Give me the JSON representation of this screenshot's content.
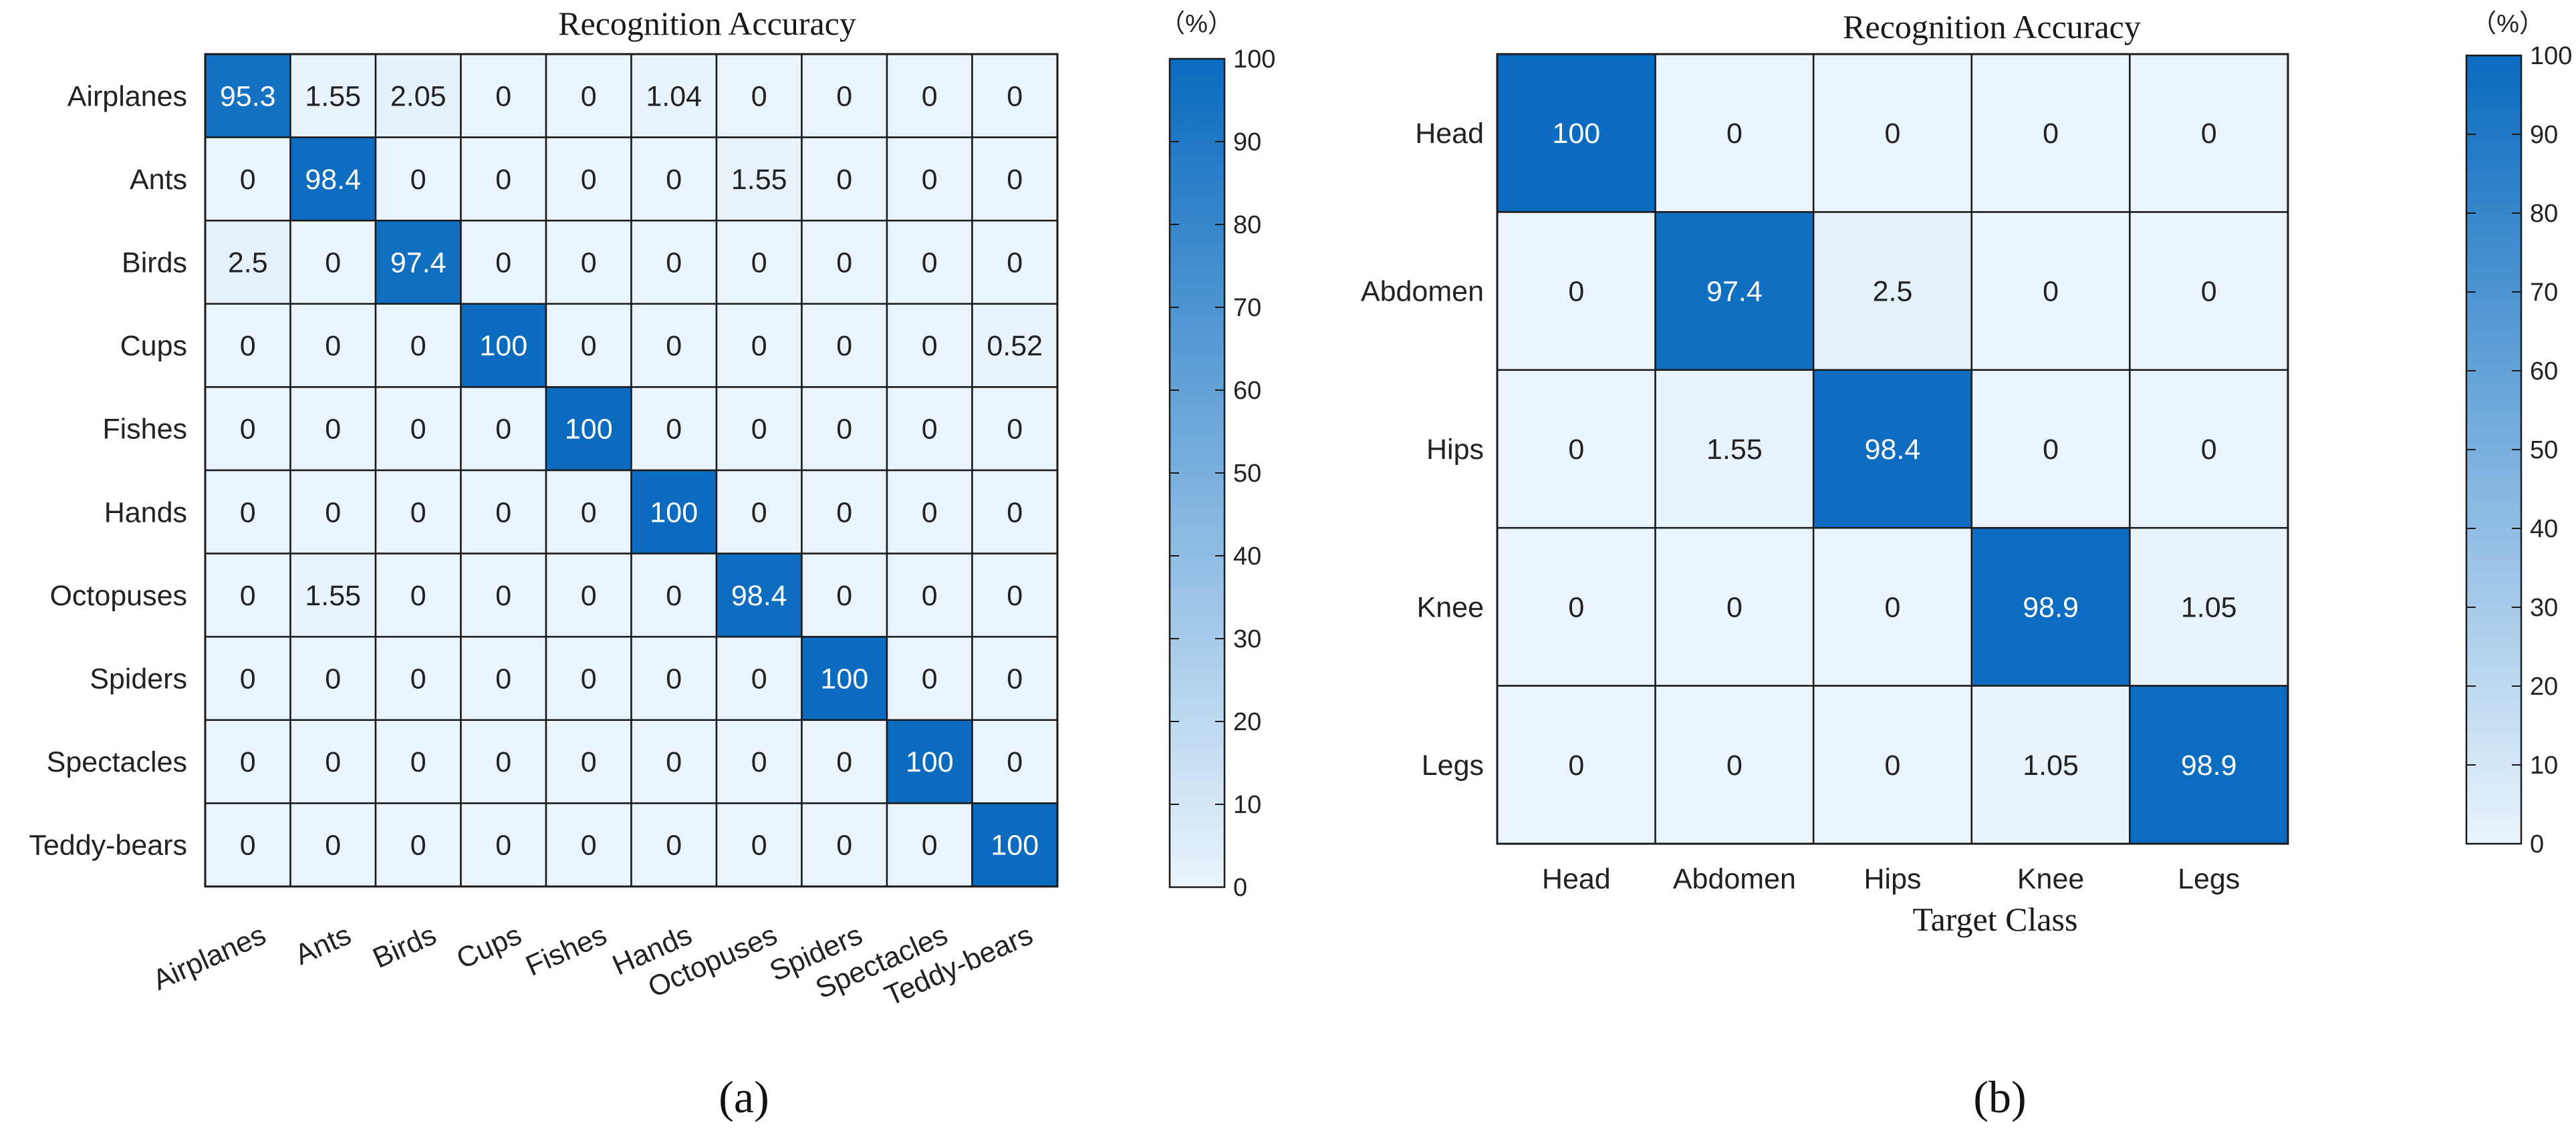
{
  "chart_data": [
    {
      "type": "heatmap",
      "panel_label": "(a)",
      "title": "Recognition Accuracy",
      "unit_label": "（%）",
      "xlabel": "",
      "ylabel": "",
      "row_labels": [
        "Airplanes",
        "Ants",
        "Birds",
        "Cups",
        "Fishes",
        "Hands",
        "Octopuses",
        "Spiders",
        "Spectacles",
        "Teddy-bears"
      ],
      "col_labels": [
        "Airplanes",
        "Ants",
        "Birds",
        "Cups",
        "Fishes",
        "Hands",
        "Octopuses",
        "Spiders",
        "Spectacles",
        "Teddy-bears"
      ],
      "values": [
        [
          "95.3",
          "1.55",
          "2.05",
          "0",
          "0",
          "1.04",
          "0",
          "0",
          "0",
          "0"
        ],
        [
          "0",
          "98.4",
          "0",
          "0",
          "0",
          "0",
          "1.55",
          "0",
          "0",
          "0"
        ],
        [
          "2.5",
          "0",
          "97.4",
          "0",
          "0",
          "0",
          "0",
          "0",
          "0",
          "0"
        ],
        [
          "0",
          "0",
          "0",
          "100",
          "0",
          "0",
          "0",
          "0",
          "0",
          "0.52"
        ],
        [
          "0",
          "0",
          "0",
          "0",
          "100",
          "0",
          "0",
          "0",
          "0",
          "0"
        ],
        [
          "0",
          "0",
          "0",
          "0",
          "0",
          "100",
          "0",
          "0",
          "0",
          "0"
        ],
        [
          "0",
          "1.55",
          "0",
          "0",
          "0",
          "0",
          "98.4",
          "0",
          "0",
          "0"
        ],
        [
          "0",
          "0",
          "0",
          "0",
          "0",
          "0",
          "0",
          "100",
          "0",
          "0"
        ],
        [
          "0",
          "0",
          "0",
          "0",
          "0",
          "0",
          "0",
          "0",
          "100",
          "0"
        ],
        [
          "0",
          "0",
          "0",
          "0",
          "0",
          "0",
          "0",
          "0",
          "0",
          "100"
        ]
      ],
      "colorbar": {
        "min": 0,
        "max": 100,
        "ticks": [
          "0",
          "10",
          "20",
          "30",
          "40",
          "50",
          "60",
          "70",
          "80",
          "90",
          "100"
        ]
      },
      "colors": {
        "low": "#eaf4fc",
        "high": "#0a6bbf"
      }
    },
    {
      "type": "heatmap",
      "panel_label": "(b)",
      "title": "Recognition Accuracy",
      "unit_label": "（%）",
      "xlabel": "Target Class",
      "ylabel": "",
      "row_labels": [
        "Head",
        "Abdomen",
        "Hips",
        "Knee",
        "Legs"
      ],
      "col_labels": [
        "Head",
        "Abdomen",
        "Hips",
        "Knee",
        "Legs"
      ],
      "values": [
        [
          "100",
          "0",
          "0",
          "0",
          "0"
        ],
        [
          "0",
          "97.4",
          "2.5",
          "0",
          "0"
        ],
        [
          "0",
          "1.55",
          "98.4",
          "0",
          "0"
        ],
        [
          "0",
          "0",
          "0",
          "98.9",
          "1.05"
        ],
        [
          "0",
          "0",
          "0",
          "1.05",
          "98.9"
        ]
      ],
      "colorbar": {
        "min": 0,
        "max": 100,
        "ticks": [
          "0",
          "10",
          "20",
          "30",
          "40",
          "50",
          "60",
          "70",
          "80",
          "90",
          "100"
        ]
      },
      "colors": {
        "low": "#eaf4fc",
        "high": "#0a6bbf"
      }
    }
  ]
}
